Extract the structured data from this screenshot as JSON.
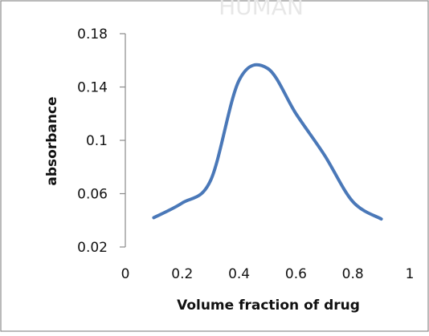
{
  "chart_data": {
    "type": "line",
    "title": "",
    "xlabel": "Volume fraction of drug",
    "ylabel": "absorbance",
    "xlim": [
      0,
      1
    ],
    "ylim": [
      0.02,
      0.18
    ],
    "x_ticks": [
      0,
      0.2,
      0.4,
      0.6,
      0.8,
      1
    ],
    "x_tick_labels": [
      "0",
      "0.2",
      "0.4",
      "0.6",
      "0.8",
      "1"
    ],
    "y_ticks": [
      0.02,
      0.06,
      0.1,
      0.14,
      0.18
    ],
    "y_tick_labels": [
      "0.02",
      "0.06",
      "0.1",
      "0.14",
      "0.18"
    ],
    "grid": false,
    "legend": "none",
    "series": [
      {
        "color": "#4a78b8",
        "x": [
          0.1,
          0.2,
          0.3,
          0.4,
          0.5,
          0.6,
          0.7,
          0.8,
          0.9
        ],
        "y": [
          0.042,
          0.053,
          0.07,
          0.145,
          0.154,
          0.12,
          0.089,
          0.054,
          0.041
        ]
      }
    ]
  },
  "watermark": {
    "text": "HUMAN"
  }
}
